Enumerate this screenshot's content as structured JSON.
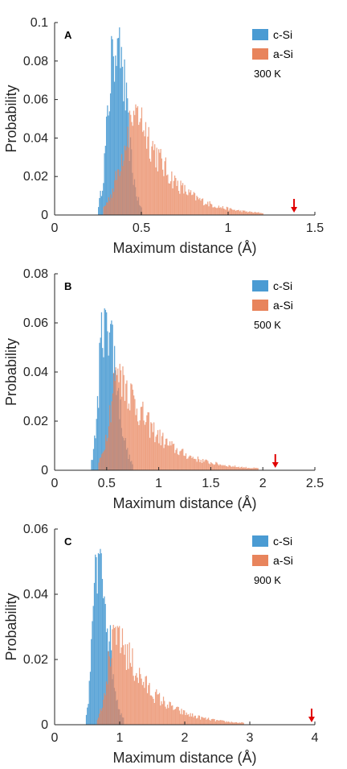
{
  "colors": {
    "c_si": "#4a9bd3",
    "a_si": "#e8845c",
    "marker": "#e00000",
    "axis": "#262626"
  },
  "chart_data": [
    {
      "type": "bar",
      "panel_label": "A",
      "xlabel": "Maximum distance (Å)",
      "ylabel": "Probability",
      "xlim": [
        0,
        1.5
      ],
      "ylim": [
        0,
        0.1
      ],
      "xticks": [
        "0",
        "0.5",
        "1",
        "1.5"
      ],
      "yticks": [
        "0",
        "0.02",
        "0.04",
        "0.06",
        "0.08",
        "0.1"
      ],
      "temperature": "300 K",
      "marker_x": 1.38,
      "series": [
        {
          "name": "c-Si",
          "peak_x": 0.35,
          "peak_y": 0.098,
          "x_min": 0.25,
          "x_max": 0.5
        },
        {
          "name": "a-Si",
          "peak_x": 0.48,
          "peak_y": 0.058,
          "x_min": 0.28,
          "x_max": 1.2
        }
      ]
    },
    {
      "type": "bar",
      "panel_label": "B",
      "xlabel": "Maximum distance (Å)",
      "ylabel": "Probability",
      "xlim": [
        0,
        2.5
      ],
      "ylim": [
        0,
        0.08
      ],
      "xticks": [
        "0",
        "0.5",
        "1",
        "1.5",
        "2",
        "2.5"
      ],
      "yticks": [
        "0",
        "0.02",
        "0.04",
        "0.06",
        "0.08"
      ],
      "temperature": "500 K",
      "marker_x": 2.12,
      "series": [
        {
          "name": "c-Si",
          "peak_x": 0.48,
          "peak_y": 0.068,
          "x_min": 0.35,
          "x_max": 0.75
        },
        {
          "name": "a-Si",
          "peak_x": 0.62,
          "peak_y": 0.044,
          "x_min": 0.42,
          "x_max": 1.95
        }
      ]
    },
    {
      "type": "bar",
      "panel_label": "C",
      "xlabel": "Maximum distance (Å)",
      "ylabel": "Probability",
      "xlim": [
        0,
        4
      ],
      "ylim": [
        0,
        0.06
      ],
      "xticks": [
        "0",
        "1",
        "2",
        "3",
        "4"
      ],
      "yticks": [
        "0",
        "0.02",
        "0.04",
        "0.06"
      ],
      "temperature": "900 K",
      "marker_x": 3.95,
      "series": [
        {
          "name": "c-Si",
          "peak_x": 0.66,
          "peak_y": 0.055,
          "x_min": 0.48,
          "x_max": 1.05
        },
        {
          "name": "a-Si",
          "peak_x": 0.95,
          "peak_y": 0.031,
          "x_min": 0.65,
          "x_max": 2.9
        }
      ]
    }
  ]
}
